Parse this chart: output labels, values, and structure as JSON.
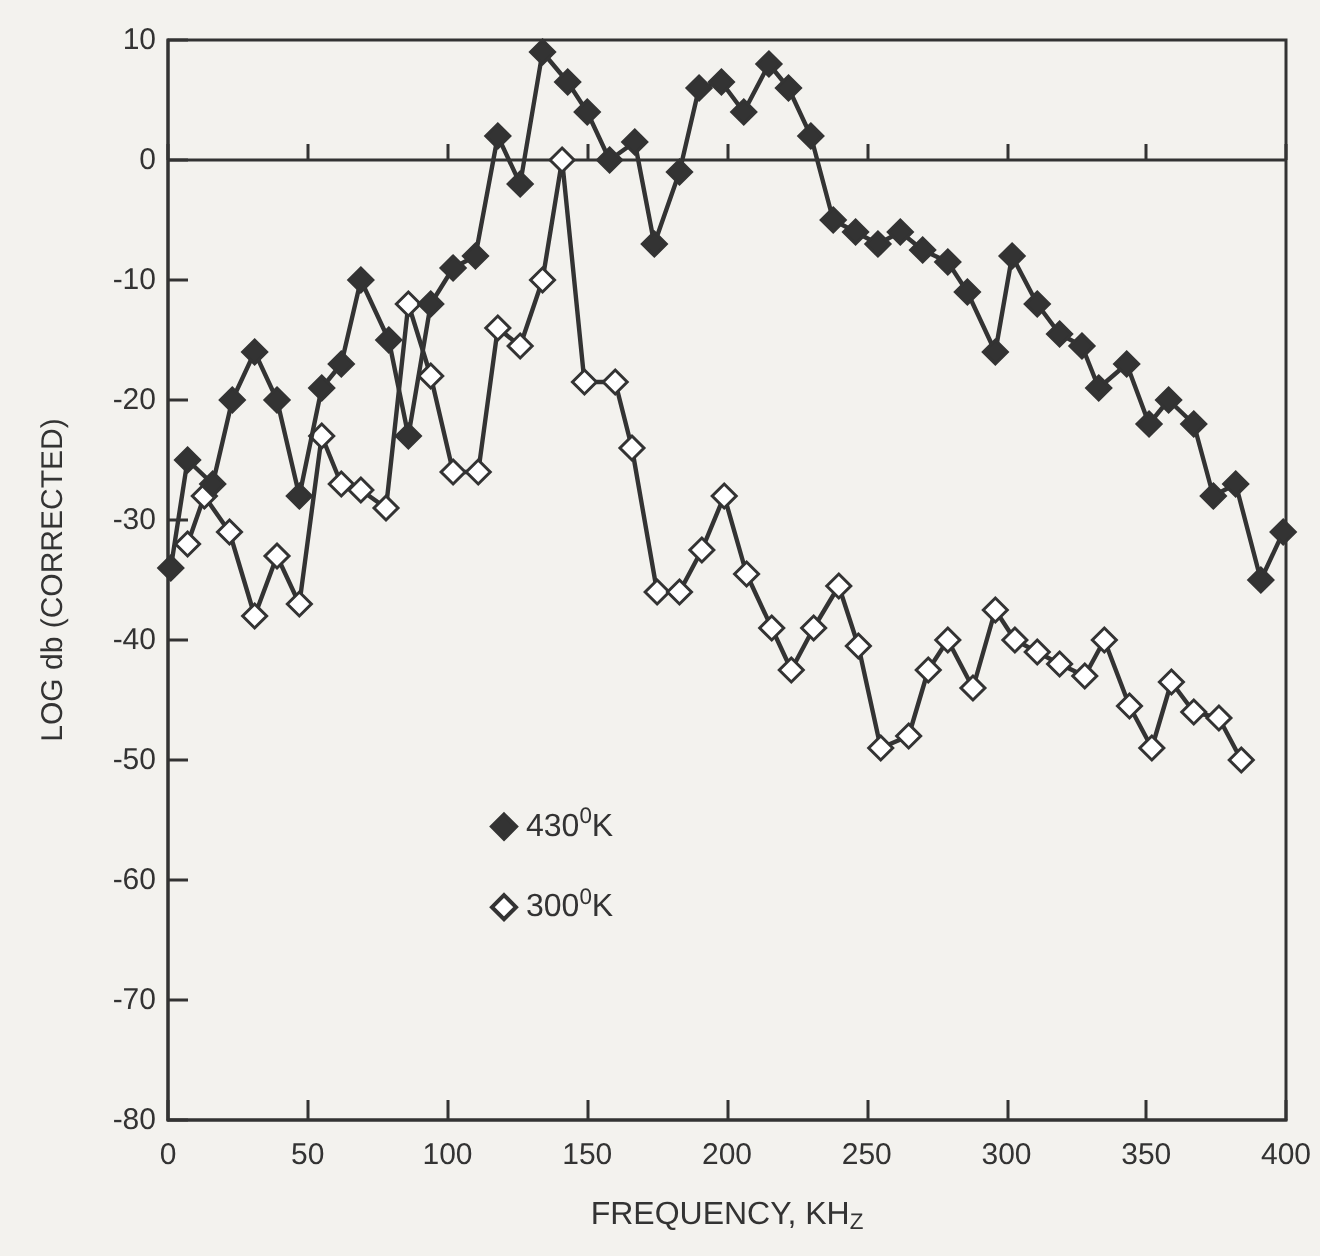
{
  "chart_data": {
    "type": "line",
    "xlabel": "FREQUENCY, KH$_{Z}$",
    "ylabel": "LOG db (CORRECTED)",
    "series": [
      {
        "name": "430$^{0}$K",
        "color": "#333333",
        "x": [
          1,
          7,
          16,
          23,
          31,
          39,
          47,
          55,
          62,
          69,
          79,
          86,
          94,
          102,
          110,
          118,
          126,
          134,
          143,
          150,
          158,
          167,
          174,
          183,
          190,
          198,
          206,
          215,
          222,
          230,
          238,
          246,
          254,
          262,
          270,
          279,
          286,
          296,
          302,
          311,
          319,
          327,
          333,
          343,
          351,
          358,
          367,
          374,
          382,
          391,
          399
        ],
        "values": [
          -34,
          -25,
          -27,
          -20,
          -16,
          -20,
          -28,
          -19,
          -17,
          -10,
          -15,
          -23,
          -12,
          -9,
          -8,
          2,
          -2,
          9,
          6.5,
          4,
          0,
          1.5,
          -7,
          -1,
          6,
          6.5,
          4,
          8,
          6,
          2,
          -5,
          -6,
          -7,
          -6,
          -7.5,
          -8.5,
          -11,
          -16,
          -8,
          -12,
          -14.5,
          -15.5,
          -19,
          -17,
          -22,
          -20,
          -22,
          -28,
          -27,
          -35,
          -31
        ]
      },
      {
        "name": "300$^{0}$K",
        "color": "#ffffff",
        "x": [
          7,
          13,
          22,
          31,
          39,
          47,
          55,
          62,
          69,
          78,
          86,
          94,
          102,
          111,
          118,
          126,
          134,
          141,
          149,
          160,
          166,
          175,
          183,
          191,
          199,
          207,
          216,
          223,
          231,
          240,
          247,
          255,
          265,
          272,
          279,
          288,
          296,
          303,
          311,
          319,
          328,
          335,
          344,
          352,
          359,
          367,
          376,
          384
        ],
        "values": [
          -32,
          -28,
          -31,
          -38,
          -33,
          -37,
          -23,
          -27,
          -27.5,
          -29,
          -12,
          -18,
          -26,
          -26,
          -14,
          -15.5,
          -10,
          0,
          -18.5,
          -18.5,
          -24,
          -36,
          -36,
          -32.5,
          -28,
          -34.5,
          -39,
          -42.5,
          -39,
          -35.5,
          -40.5,
          -49,
          -48,
          -42.5,
          -40,
          -44,
          -37.5,
          -40,
          -41,
          -42,
          -43,
          -40,
          -45.5,
          -49,
          -43.5,
          -46,
          -46.5,
          -50
        ]
      }
    ],
    "xlim": [
      0,
      400
    ],
    "xticks": [
      0,
      50,
      100,
      150,
      200,
      250,
      300,
      350,
      400
    ],
    "ylim": [
      -80,
      10
    ],
    "yticks": [
      -80,
      -70,
      -60,
      -50,
      -40,
      -30,
      -20,
      -10,
      0,
      10
    ],
    "ref_lines": [
      {
        "axis": "y",
        "value": 0,
        "color": "#333333",
        "line_style": "solid"
      }
    ],
    "grid": false,
    "legend": "left",
    "marker": "diamond",
    "line_style": "solid"
  }
}
